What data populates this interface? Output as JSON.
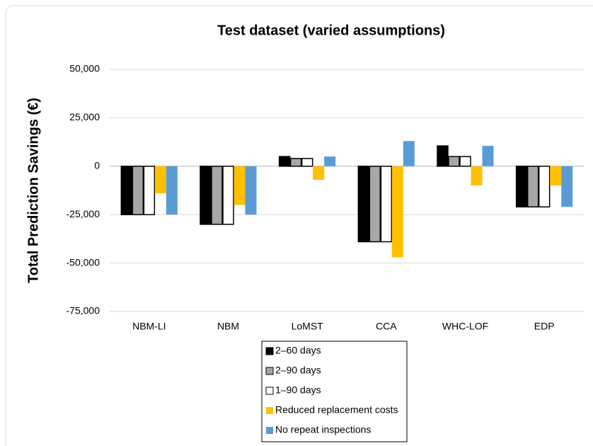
{
  "chart_data": {
    "type": "bar",
    "title": "Test dataset (varied assumptions)",
    "y_label": "Total Prediction Savings (€)",
    "categories": [
      "NBM-LI",
      "NBM",
      "LoMST",
      "CCA",
      "WHC-LOF",
      "EDP"
    ],
    "series": [
      {
        "name": "2–60 days",
        "color": "#000000",
        "values": [
          -25000,
          -30000,
          5000,
          -39000,
          10500,
          -21000
        ]
      },
      {
        "name": "2–90 days",
        "color": "#a6a6a6",
        "values": [
          -25000,
          -30000,
          4000,
          -39000,
          5000,
          -21000
        ]
      },
      {
        "name": "1–90 days",
        "color": "#ffffff",
        "values": [
          -25000,
          -30000,
          4000,
          -39000,
          5000,
          -21000
        ]
      },
      {
        "name": "Reduced replacement costs",
        "color": "#ffc000",
        "values": [
          -14000,
          -20000,
          -7000,
          -47000,
          -10000,
          -10000
        ]
      },
      {
        "name": "No repeat inspections",
        "color": "#5b9bd5",
        "values": [
          -25000,
          -25000,
          5000,
          13000,
          10500,
          -21000
        ]
      }
    ],
    "ylim": [
      -75000,
      50000
    ],
    "yticks": [
      {
        "value": -75000,
        "label": "-75,000"
      },
      {
        "value": -50000,
        "label": "-50,000"
      },
      {
        "value": -25000,
        "label": "-25,000"
      },
      0,
      {
        "value": 25000,
        "label": "25,000"
      },
      {
        "value": 50000,
        "label": "50,000"
      }
    ],
    "grid": true,
    "legend": "bottom"
  }
}
